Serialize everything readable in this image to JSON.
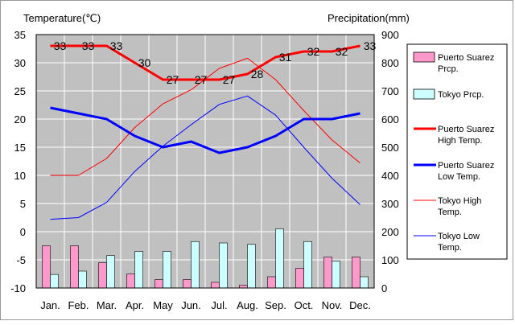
{
  "chart_data": {
    "type": "bar+line",
    "title": "",
    "ylabel_left": "Temperature(℃)",
    "ylabel_right": "Precipitation(mm)",
    "ylim_left": [
      -10,
      35
    ],
    "ylim_right": [
      0,
      900
    ],
    "yticks_left": [
      "35",
      "30",
      "25",
      "20",
      "15",
      "10",
      "5",
      "0",
      "-5",
      "-10"
    ],
    "yticks_right": [
      "900",
      "800",
      "700",
      "600",
      "500",
      "400",
      "300",
      "200",
      "100",
      "0"
    ],
    "categories": [
      "Jan.",
      "Feb.",
      "Mar.",
      "Apr.",
      "May",
      "Jun.",
      "Jul.",
      "Aug.",
      "Sep.",
      "Oct.",
      "Nov.",
      "Dec."
    ],
    "grid": true,
    "legend_position": "right",
    "bar_series": [
      {
        "name": "Puerto Suarez Prcp.",
        "color": "#ff99cc",
        "axis": "right",
        "values": [
          150,
          150,
          90,
          50,
          30,
          30,
          20,
          10,
          40,
          70,
          110,
          110
        ]
      },
      {
        "name": "Tokyo Prcp.",
        "color": "#ccffff",
        "axis": "right",
        "values": [
          48,
          60,
          115,
          130,
          130,
          165,
          160,
          155,
          210,
          165,
          95,
          40
        ]
      }
    ],
    "line_series": [
      {
        "name": "Puerto Suarez High Temp.",
        "color": "#ff0000",
        "width": 3,
        "axis": "left",
        "values": [
          33,
          33,
          33,
          30,
          27,
          27,
          27,
          28,
          31,
          32,
          32,
          33
        ],
        "labels": [
          "33",
          "33",
          "33",
          "30",
          "27",
          "27",
          "27",
          "28",
          "31",
          "32",
          "32",
          "33"
        ]
      },
      {
        "name": "Puerto Suarez Low Temp.",
        "color": "#0000ff",
        "width": 3,
        "axis": "left",
        "values": [
          22,
          21,
          20,
          17,
          15,
          16,
          14,
          15,
          17,
          20,
          20,
          21
        ]
      },
      {
        "name": "Tokyo High Temp.",
        "color": "#ff0000",
        "width": 1,
        "axis": "left",
        "values": [
          10,
          10,
          13,
          18.5,
          22.7,
          25.2,
          29,
          30.8,
          27,
          21.5,
          16.3,
          12.2
        ]
      },
      {
        "name": "Tokyo Low Temp.",
        "color": "#0000ff",
        "width": 1,
        "axis": "left",
        "values": [
          2.2,
          2.5,
          5.2,
          10.7,
          15.2,
          19,
          22.6,
          24.1,
          20.7,
          15,
          9.5,
          4.8
        ]
      }
    ],
    "legend": [
      {
        "label": "Puerto Suarez Prcp.",
        "kind": "box",
        "color": "#ff99cc"
      },
      {
        "label": "Tokyo Prcp.",
        "kind": "box",
        "color": "#ccffff"
      },
      {
        "label": "Puerto Suarez High Temp.",
        "kind": "line",
        "color": "#ff0000",
        "width": 3
      },
      {
        "label": "Puerto Suarez Low Temp.",
        "kind": "line",
        "color": "#0000ff",
        "width": 3
      },
      {
        "label": "Tokyo High Temp.",
        "kind": "line",
        "color": "#ff0000",
        "width": 1
      },
      {
        "label": "Tokyo Low Temp.",
        "kind": "line",
        "color": "#0000ff",
        "width": 1
      }
    ],
    "colors": {
      "plot_background": "#c0c0c0",
      "gridline": "#ffffff"
    }
  }
}
